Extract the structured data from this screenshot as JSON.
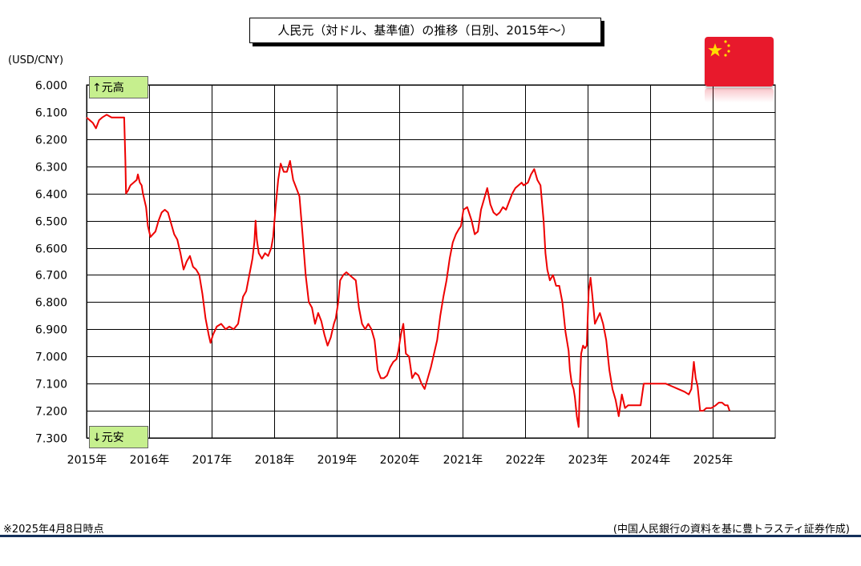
{
  "title": "人民元（対ドル、基準値）の推移（日別、2015年～）",
  "unit_label": "(USD/CNY)",
  "tag_top": "↑元高",
  "tag_bottom": "↓元安",
  "footnote": "※2025年4月8日時点",
  "source": "(中国人民銀行の資料を基に豊トラスティ証券作成)",
  "flag_icon": "china-flag-icon",
  "colors": {
    "line": "#ee0000",
    "grid": "#000000",
    "tag_bg": "#c6ef8e",
    "flag": "#e8192c",
    "star": "#ffde00",
    "rule": "#14305a"
  },
  "chart_data": {
    "type": "line",
    "title": "人民元（対ドル、基準値）の推移（日別、2015年～）",
    "xlabel": "",
    "ylabel": "(USD/CNY)",
    "y_inverted": true,
    "ylim": [
      6.0,
      7.3
    ],
    "xlim": [
      2015.0,
      2026.0
    ],
    "y_ticks": [
      "6.000",
      "6.100",
      "6.200",
      "6.300",
      "6.400",
      "6.500",
      "6.600",
      "6.700",
      "6.800",
      "6.900",
      "7.000",
      "7.100",
      "7.200",
      "7.300"
    ],
    "x_ticks": [
      "2015年",
      "2016年",
      "2017年",
      "2018年",
      "2019年",
      "2020年",
      "2021年",
      "2022年",
      "2023年",
      "2024年",
      "2025年"
    ],
    "grid": true,
    "series": [
      {
        "color": "#ee0000",
        "points": [
          [
            2015.0,
            6.12
          ],
          [
            2015.05,
            6.13
          ],
          [
            2015.1,
            6.14
          ],
          [
            2015.15,
            6.16
          ],
          [
            2015.2,
            6.13
          ],
          [
            2015.25,
            6.12
          ],
          [
            2015.32,
            6.11
          ],
          [
            2015.4,
            6.12
          ],
          [
            2015.48,
            6.12
          ],
          [
            2015.55,
            6.12
          ],
          [
            2015.6,
            6.12
          ],
          [
            2015.62,
            6.28
          ],
          [
            2015.63,
            6.4
          ],
          [
            2015.66,
            6.39
          ],
          [
            2015.7,
            6.37
          ],
          [
            2015.75,
            6.36
          ],
          [
            2015.8,
            6.35
          ],
          [
            2015.82,
            6.33
          ],
          [
            2015.85,
            6.36
          ],
          [
            2015.88,
            6.37
          ],
          [
            2015.9,
            6.4
          ],
          [
            2015.95,
            6.45
          ],
          [
            2015.98,
            6.52
          ],
          [
            2016.02,
            6.56
          ],
          [
            2016.06,
            6.55
          ],
          [
            2016.1,
            6.54
          ],
          [
            2016.15,
            6.5
          ],
          [
            2016.2,
            6.47
          ],
          [
            2016.25,
            6.46
          ],
          [
            2016.3,
            6.47
          ],
          [
            2016.35,
            6.51
          ],
          [
            2016.4,
            6.55
          ],
          [
            2016.45,
            6.57
          ],
          [
            2016.5,
            6.62
          ],
          [
            2016.55,
            6.68
          ],
          [
            2016.6,
            6.65
          ],
          [
            2016.65,
            6.63
          ],
          [
            2016.7,
            6.67
          ],
          [
            2016.75,
            6.68
          ],
          [
            2016.8,
            6.7
          ],
          [
            2016.85,
            6.77
          ],
          [
            2016.9,
            6.86
          ],
          [
            2016.95,
            6.92
          ],
          [
            2016.98,
            6.95
          ],
          [
            2017.02,
            6.92
          ],
          [
            2017.08,
            6.89
          ],
          [
            2017.15,
            6.88
          ],
          [
            2017.22,
            6.9
          ],
          [
            2017.28,
            6.89
          ],
          [
            2017.35,
            6.9
          ],
          [
            2017.42,
            6.88
          ],
          [
            2017.45,
            6.84
          ],
          [
            2017.5,
            6.78
          ],
          [
            2017.55,
            6.76
          ],
          [
            2017.6,
            6.7
          ],
          [
            2017.65,
            6.64
          ],
          [
            2017.68,
            6.58
          ],
          [
            2017.7,
            6.5
          ],
          [
            2017.72,
            6.57
          ],
          [
            2017.75,
            6.62
          ],
          [
            2017.8,
            6.64
          ],
          [
            2017.85,
            6.62
          ],
          [
            2017.9,
            6.63
          ],
          [
            2017.95,
            6.6
          ],
          [
            2017.98,
            6.56
          ],
          [
            2018.02,
            6.45
          ],
          [
            2018.06,
            6.35
          ],
          [
            2018.1,
            6.29
          ],
          [
            2018.15,
            6.32
          ],
          [
            2018.2,
            6.32
          ],
          [
            2018.25,
            6.28
          ],
          [
            2018.3,
            6.35
          ],
          [
            2018.35,
            6.38
          ],
          [
            2018.4,
            6.41
          ],
          [
            2018.45,
            6.55
          ],
          [
            2018.5,
            6.7
          ],
          [
            2018.55,
            6.8
          ],
          [
            2018.6,
            6.82
          ],
          [
            2018.65,
            6.88
          ],
          [
            2018.7,
            6.84
          ],
          [
            2018.75,
            6.87
          ],
          [
            2018.8,
            6.92
          ],
          [
            2018.85,
            6.96
          ],
          [
            2018.9,
            6.93
          ],
          [
            2018.95,
            6.88
          ],
          [
            2018.98,
            6.86
          ],
          [
            2019.02,
            6.8
          ],
          [
            2019.05,
            6.72
          ],
          [
            2019.1,
            6.7
          ],
          [
            2019.15,
            6.69
          ],
          [
            2019.2,
            6.7
          ],
          [
            2019.25,
            6.71
          ],
          [
            2019.3,
            6.72
          ],
          [
            2019.35,
            6.82
          ],
          [
            2019.4,
            6.88
          ],
          [
            2019.45,
            6.9
          ],
          [
            2019.5,
            6.88
          ],
          [
            2019.55,
            6.9
          ],
          [
            2019.6,
            6.94
          ],
          [
            2019.65,
            7.05
          ],
          [
            2019.7,
            7.08
          ],
          [
            2019.75,
            7.08
          ],
          [
            2019.8,
            7.07
          ],
          [
            2019.85,
            7.04
          ],
          [
            2019.9,
            7.02
          ],
          [
            2019.95,
            7.01
          ],
          [
            2019.98,
            6.98
          ],
          [
            2020.02,
            6.92
          ],
          [
            2020.06,
            6.88
          ],
          [
            2020.1,
            6.99
          ],
          [
            2020.15,
            7.0
          ],
          [
            2020.2,
            7.08
          ],
          [
            2020.25,
            7.06
          ],
          [
            2020.3,
            7.07
          ],
          [
            2020.35,
            7.1
          ],
          [
            2020.4,
            7.12
          ],
          [
            2020.45,
            7.08
          ],
          [
            2020.5,
            7.04
          ],
          [
            2020.55,
            6.99
          ],
          [
            2020.6,
            6.94
          ],
          [
            2020.65,
            6.85
          ],
          [
            2020.7,
            6.78
          ],
          [
            2020.75,
            6.72
          ],
          [
            2020.8,
            6.64
          ],
          [
            2020.85,
            6.58
          ],
          [
            2020.9,
            6.55
          ],
          [
            2020.95,
            6.53
          ],
          [
            2020.98,
            6.52
          ],
          [
            2021.02,
            6.46
          ],
          [
            2021.08,
            6.45
          ],
          [
            2021.15,
            6.5
          ],
          [
            2021.2,
            6.55
          ],
          [
            2021.25,
            6.54
          ],
          [
            2021.3,
            6.46
          ],
          [
            2021.35,
            6.42
          ],
          [
            2021.4,
            6.38
          ],
          [
            2021.45,
            6.44
          ],
          [
            2021.5,
            6.47
          ],
          [
            2021.55,
            6.48
          ],
          [
            2021.6,
            6.47
          ],
          [
            2021.65,
            6.45
          ],
          [
            2021.7,
            6.46
          ],
          [
            2021.75,
            6.43
          ],
          [
            2021.8,
            6.4
          ],
          [
            2021.85,
            6.38
          ],
          [
            2021.9,
            6.37
          ],
          [
            2021.95,
            6.36
          ],
          [
            2021.98,
            6.37
          ],
          [
            2022.05,
            6.36
          ],
          [
            2022.1,
            6.33
          ],
          [
            2022.15,
            6.31
          ],
          [
            2022.2,
            6.35
          ],
          [
            2022.25,
            6.37
          ],
          [
            2022.3,
            6.5
          ],
          [
            2022.33,
            6.62
          ],
          [
            2022.36,
            6.68
          ],
          [
            2022.4,
            6.72
          ],
          [
            2022.45,
            6.7
          ],
          [
            2022.5,
            6.74
          ],
          [
            2022.55,
            6.74
          ],
          [
            2022.6,
            6.8
          ],
          [
            2022.65,
            6.91
          ],
          [
            2022.7,
            6.98
          ],
          [
            2022.72,
            7.05
          ],
          [
            2022.75,
            7.1
          ],
          [
            2022.78,
            7.12
          ],
          [
            2022.8,
            7.15
          ],
          [
            2022.83,
            7.22
          ],
          [
            2022.86,
            7.26
          ],
          [
            2022.88,
            7.1
          ],
          [
            2022.9,
            6.99
          ],
          [
            2022.93,
            6.96
          ],
          [
            2022.96,
            6.97
          ],
          [
            2022.99,
            6.96
          ],
          [
            2023.02,
            6.76
          ],
          [
            2023.05,
            6.71
          ],
          [
            2023.08,
            6.78
          ],
          [
            2023.12,
            6.88
          ],
          [
            2023.16,
            6.86
          ],
          [
            2023.2,
            6.84
          ],
          [
            2023.25,
            6.88
          ],
          [
            2023.3,
            6.94
          ],
          [
            2023.35,
            7.05
          ],
          [
            2023.4,
            7.12
          ],
          [
            2023.45,
            7.16
          ],
          [
            2023.5,
            7.22
          ],
          [
            2023.55,
            7.14
          ],
          [
            2023.6,
            7.19
          ],
          [
            2023.65,
            7.18
          ],
          [
            2023.7,
            7.18
          ],
          [
            2023.75,
            7.18
          ],
          [
            2023.8,
            7.18
          ],
          [
            2023.85,
            7.18
          ],
          [
            2023.9,
            7.1
          ],
          [
            2023.95,
            7.1
          ],
          [
            2023.98,
            7.1
          ],
          [
            2024.05,
            7.1
          ],
          [
            2024.15,
            7.1
          ],
          [
            2024.25,
            7.1
          ],
          [
            2024.35,
            7.11
          ],
          [
            2024.45,
            7.12
          ],
          [
            2024.55,
            7.13
          ],
          [
            2024.62,
            7.14
          ],
          [
            2024.66,
            7.12
          ],
          [
            2024.7,
            7.02
          ],
          [
            2024.73,
            7.08
          ],
          [
            2024.76,
            7.11
          ],
          [
            2024.8,
            7.2
          ],
          [
            2024.85,
            7.2
          ],
          [
            2024.9,
            7.19
          ],
          [
            2024.95,
            7.19
          ],
          [
            2024.98,
            7.19
          ],
          [
            2025.05,
            7.18
          ],
          [
            2025.1,
            7.17
          ],
          [
            2025.15,
            7.17
          ],
          [
            2025.2,
            7.18
          ],
          [
            2025.24,
            7.18
          ],
          [
            2025.27,
            7.2
          ]
        ]
      }
    ]
  }
}
